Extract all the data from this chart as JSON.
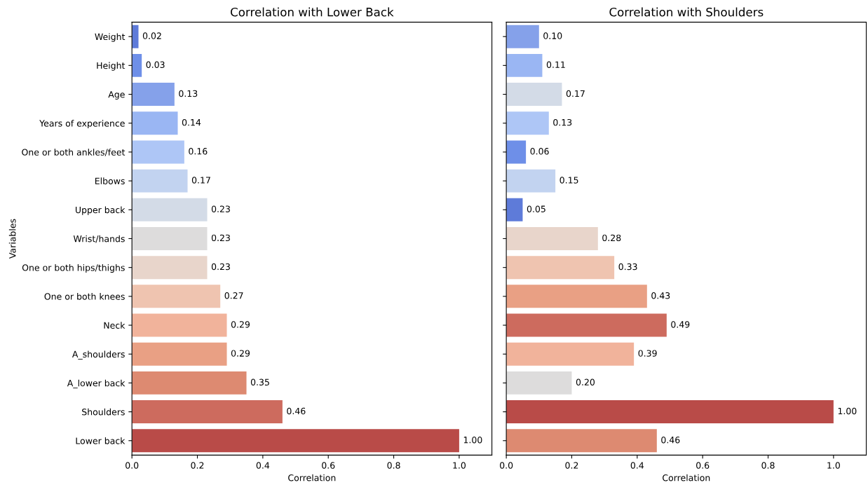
{
  "chart_data": [
    {
      "type": "bar",
      "orientation": "horizontal",
      "title": "Correlation with Lower Back",
      "xlabel": "Correlation",
      "ylabel": "Variables",
      "categories": [
        "Weight",
        "Height",
        "Age",
        "Years of experience",
        "One or both ankles/feet",
        "Elbows",
        "Upper back",
        "Wrist/hands",
        "One or both hips/thighs",
        "One or both knees",
        "Neck",
        "A_shoulders",
        "A_lower back",
        "Shoulders",
        "Lower back"
      ],
      "values": [
        0.02,
        0.03,
        0.13,
        0.14,
        0.16,
        0.17,
        0.23,
        0.23,
        0.23,
        0.27,
        0.29,
        0.29,
        0.35,
        0.46,
        1.0
      ],
      "colors": [
        "#5e7bd9",
        "#6e8fe8",
        "#85a1ea",
        "#9ab6f3",
        "#aec6f6",
        "#c2d3f0",
        "#d3dbe7",
        "#dddcdc",
        "#e8d5cb",
        "#efc4b0",
        "#f1b39b",
        "#e9a084",
        "#dd8a71",
        "#cd6b5e",
        "#b94b48"
      ],
      "value_labels": [
        "0.02",
        "0.03",
        "0.13",
        "0.14",
        "0.16",
        "0.17",
        "0.23",
        "0.23",
        "0.23",
        "0.27",
        "0.29",
        "0.29",
        "0.35",
        "0.46",
        "1.00"
      ],
      "xlim": [
        0,
        1.1
      ],
      "xticks": [
        {
          "value": 0,
          "label": "0.0"
        },
        {
          "value": 0.2,
          "label": "0.2"
        },
        {
          "value": 0.4,
          "label": "0.4"
        },
        {
          "value": 0.6,
          "label": "0.6"
        },
        {
          "value": 0.8,
          "label": "0.8"
        },
        {
          "value": 1.0,
          "label": "1.0"
        }
      ],
      "grid": false
    },
    {
      "type": "bar",
      "orientation": "horizontal",
      "title": "Correlation with Shoulders",
      "xlabel": "Correlation",
      "tick_labels": "x",
      "categories": [
        null,
        null,
        null,
        null,
        null,
        null,
        null,
        null,
        null,
        null,
        null,
        null,
        null,
        null,
        null
      ],
      "values": [
        0.1,
        0.11,
        0.17,
        0.13,
        0.06,
        0.15,
        0.05,
        0.28,
        0.33,
        0.43,
        0.49,
        0.39,
        0.2,
        1.0,
        0.46
      ],
      "colors": [
        "#85a1ea",
        "#9ab6f3",
        "#d3dbe7",
        "#aec6f6",
        "#6e8fe8",
        "#c2d3f0",
        "#5e7bd9",
        "#e8d5cb",
        "#efc4b0",
        "#e9a084",
        "#cd6b5e",
        "#f1b39b",
        "#dddcdc",
        "#b94b48",
        "#dd8a71"
      ],
      "value_labels": [
        "0.10",
        "0.11",
        "0.17",
        "0.13",
        "0.06",
        "0.15",
        "0.05",
        "0.28",
        "0.33",
        "0.43",
        "0.49",
        "0.39",
        "0.20",
        "1.00",
        "0.46"
      ],
      "xlim": [
        0,
        1.1
      ],
      "xticks": [
        {
          "value": 0,
          "label": "0.0"
        },
        {
          "value": 0.2,
          "label": "0.2"
        },
        {
          "value": 0.4,
          "label": "0.4"
        },
        {
          "value": 0.6,
          "label": "0.6"
        },
        {
          "value": 0.8,
          "label": "0.8"
        },
        {
          "value": 1.0,
          "label": "1.0"
        }
      ],
      "grid": false
    }
  ]
}
